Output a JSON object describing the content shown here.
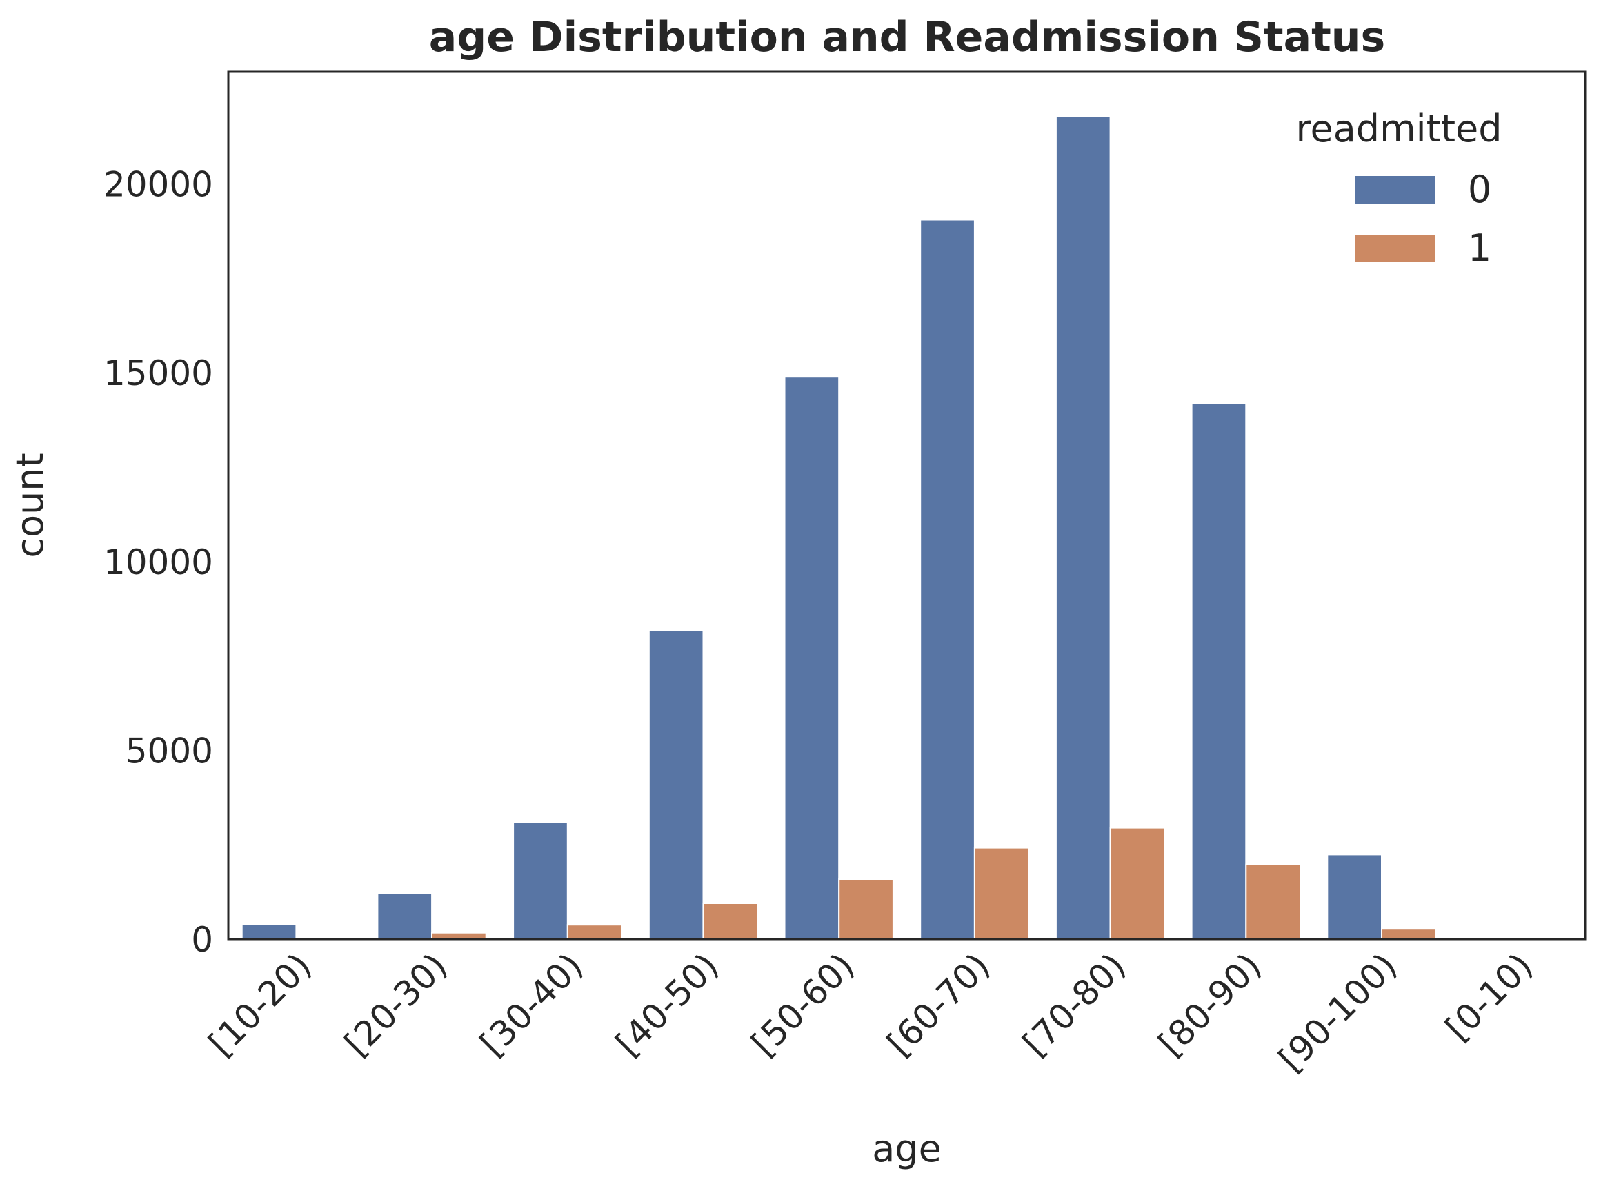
{
  "chart_data": {
    "type": "bar",
    "title": "age Distribution and Readmission Status",
    "xlabel": "age",
    "ylabel": "count",
    "categories": [
      "[10-20)",
      "[20-30)",
      "[30-40)",
      "[40-50)",
      "[50-60)",
      "[60-70)",
      "[70-80)",
      "[80-90)",
      "[90-100)",
      "[0-10)"
    ],
    "series": [
      {
        "name": "0",
        "color": "#5875a4",
        "values": [
          390,
          1220,
          3090,
          8180,
          14890,
          19050,
          21800,
          14190,
          2240,
          0
        ]
      },
      {
        "name": "1",
        "color": "#cc8963",
        "values": [
          0,
          170,
          380,
          950,
          1590,
          2420,
          2950,
          1980,
          270,
          0
        ]
      }
    ],
    "ylim": [
      0,
      22970
    ],
    "yticks": [
      0,
      5000,
      10000,
      15000,
      20000
    ],
    "legend_title": "readmitted",
    "legend_position": "top-right",
    "grid": false
  }
}
